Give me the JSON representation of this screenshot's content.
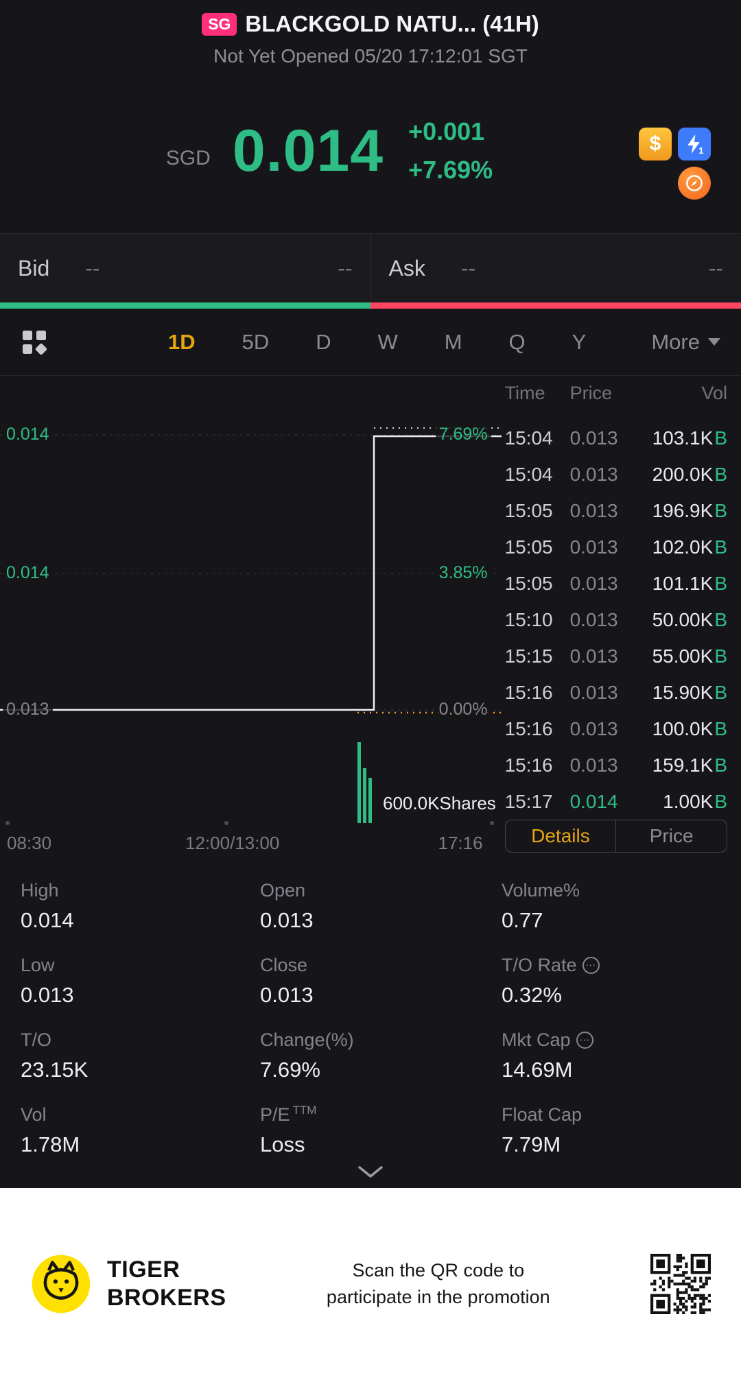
{
  "colors": {
    "up_green": "#2ebd85",
    "down_red": "#ff4560",
    "accent_gold": "#e7a50f",
    "badge_pink": "#ff2f7b",
    "logo_yellow": "#ffe000"
  },
  "icons": {
    "dollar": "$",
    "flash_badge": "1",
    "ellipsis": "⋯"
  },
  "header": {
    "exchange_badge": "SG",
    "title": "BLACKGOLD NATU... (41H)",
    "status": "Not Yet Opened 05/20 17:12:01 SGT"
  },
  "quote": {
    "currency": "SGD",
    "price": "0.014",
    "change": "+0.001",
    "change_pct": "+7.69%"
  },
  "bid_ask": {
    "bid_label": "Bid",
    "bid_price": "--",
    "bid_qty": "--",
    "ask_label": "Ask",
    "ask_price": "--",
    "ask_qty": "--"
  },
  "tabs": {
    "items": [
      "1D",
      "5D",
      "D",
      "W",
      "M",
      "Q",
      "Y"
    ],
    "active": "1D",
    "more": "More"
  },
  "chart": {
    "price_labels": [
      {
        "text": "0.014",
        "tone": "up"
      },
      {
        "text": "0.014",
        "tone": "up"
      },
      {
        "text": "0.013",
        "tone": "flat"
      }
    ],
    "pct_labels": [
      {
        "text": "7.69%",
        "tone": "up"
      },
      {
        "text": "3.85%",
        "tone": "up"
      },
      {
        "text": "0.00%",
        "tone": "flat"
      }
    ],
    "volume_label": "600.0KShares",
    "x_ticks": [
      "08:30",
      "12:00/13:00",
      "17:16"
    ]
  },
  "trades": {
    "columns": [
      "Time",
      "Price",
      "Vol"
    ],
    "rows": [
      {
        "time": "15:04",
        "price": "0.013",
        "vol": "103.1K",
        "side": "B"
      },
      {
        "time": "15:04",
        "price": "0.013",
        "vol": "200.0K",
        "side": "B"
      },
      {
        "time": "15:05",
        "price": "0.013",
        "vol": "196.9K",
        "side": "B"
      },
      {
        "time": "15:05",
        "price": "0.013",
        "vol": "102.0K",
        "side": "B"
      },
      {
        "time": "15:05",
        "price": "0.013",
        "vol": "101.1K",
        "side": "B"
      },
      {
        "time": "15:10",
        "price": "0.013",
        "vol": "50.00K",
        "side": "B"
      },
      {
        "time": "15:15",
        "price": "0.013",
        "vol": "55.00K",
        "side": "B"
      },
      {
        "time": "15:16",
        "price": "0.013",
        "vol": "15.90K",
        "side": "B"
      },
      {
        "time": "15:16",
        "price": "0.013",
        "vol": "100.0K",
        "side": "B"
      },
      {
        "time": "15:16",
        "price": "0.013",
        "vol": "159.1K",
        "side": "B"
      },
      {
        "time": "15:17",
        "price": "0.014",
        "vol": "1.00K",
        "side": "B",
        "price_up": true
      }
    ],
    "buttons": {
      "details": "Details",
      "price": "Price"
    }
  },
  "stats": {
    "cells": [
      {
        "label": "High",
        "value": "0.014"
      },
      {
        "label": "Open",
        "value": "0.013"
      },
      {
        "label": "Volume%",
        "value": "0.77"
      },
      {
        "label": "Low",
        "value": "0.013"
      },
      {
        "label": "Close",
        "value": "0.013"
      },
      {
        "label": "T/O Rate",
        "value": "0.32%",
        "info": true
      },
      {
        "label": "T/O",
        "value": "23.15K"
      },
      {
        "label": "Change(%)",
        "value": "7.69%"
      },
      {
        "label": "Mkt Cap",
        "value": "14.69M",
        "info": true
      },
      {
        "label": "Vol",
        "value": "1.78M"
      },
      {
        "label": "P/E",
        "sup": "TTM",
        "value": "Loss"
      },
      {
        "label": "Float Cap",
        "value": "7.79M"
      }
    ]
  },
  "footer": {
    "brand_top": "TIGER",
    "brand_bottom": "BROKERS",
    "promo_line1": "Scan the QR code to",
    "promo_line2": "participate in the promotion"
  }
}
